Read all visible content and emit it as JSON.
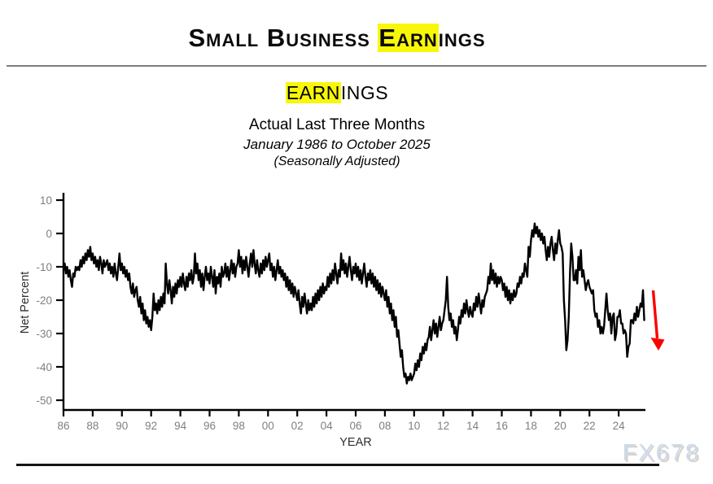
{
  "header": {
    "title_pre": "Small Business ",
    "title_highlight": "Earn",
    "title_post": "ings"
  },
  "watermark": "FX678",
  "chart_data": {
    "type": "line",
    "title_highlight": "EARN",
    "title_rest": "INGS",
    "subtitle": "Actual Last Three Months",
    "date_range": "January 1986 to October 2025",
    "adjustment_note": "(Seasonally Adjusted)",
    "xlabel": "YEAR",
    "ylabel": "Net Percent",
    "ylim": [
      -50,
      10
    ],
    "xlim_years": [
      1986,
      2026
    ],
    "yticks": [
      10,
      0,
      -10,
      -20,
      -30,
      -40,
      -50
    ],
    "xticks": [
      {
        "year": 1986,
        "label": "86"
      },
      {
        "year": 1988,
        "label": "88"
      },
      {
        "year": 1990,
        "label": "90"
      },
      {
        "year": 1992,
        "label": "92"
      },
      {
        "year": 1994,
        "label": "94"
      },
      {
        "year": 1996,
        "label": "96"
      },
      {
        "year": 1998,
        "label": "98"
      },
      {
        "year": 2000,
        "label": "00"
      },
      {
        "year": 2002,
        "label": "02"
      },
      {
        "year": 2004,
        "label": "04"
      },
      {
        "year": 2006,
        "label": "06"
      },
      {
        "year": 2008,
        "label": "08"
      },
      {
        "year": 2010,
        "label": "10"
      },
      {
        "year": 2012,
        "label": "12"
      },
      {
        "year": 2014,
        "label": "14"
      },
      {
        "year": 2016,
        "label": "16"
      },
      {
        "year": 2018,
        "label": "18"
      },
      {
        "year": 2020,
        "label": "20"
      },
      {
        "year": 2022,
        "label": "22"
      },
      {
        "year": 2024,
        "label": "24"
      }
    ],
    "grid": false,
    "legend": "none",
    "line_color": "#000000",
    "frequency": "monthly",
    "start": "1986-01",
    "end": "2025-10",
    "annotation_arrow": {
      "direction": "down",
      "color": "#fb0000",
      "near_year": 2026
    },
    "monthly_net_percent": {
      "1986": [
        -11,
        -9,
        -12,
        -10,
        -13,
        -11,
        -14,
        -16,
        -12,
        -13,
        -10,
        -11
      ],
      "1987": [
        -10,
        -11,
        -8,
        -10,
        -7,
        -9,
        -6,
        -8,
        -5,
        -7,
        -4,
        -8
      ],
      "1988": [
        -6,
        -9,
        -7,
        -10,
        -8,
        -11,
        -7,
        -9,
        -12,
        -8,
        -10,
        -9
      ],
      "1989": [
        -8,
        -11,
        -9,
        -12,
        -10,
        -13,
        -9,
        -12,
        -14,
        -10,
        -6,
        -11
      ],
      "1990": [
        -9,
        -12,
        -10,
        -13,
        -11,
        -14,
        -12,
        -16,
        -18,
        -15,
        -19,
        -17
      ],
      "1991": [
        -16,
        -20,
        -22,
        -19,
        -24,
        -21,
        -26,
        -23,
        -27,
        -25,
        -28,
        -26
      ],
      "1992": [
        -29,
        -25,
        -18,
        -23,
        -21,
        -24,
        -20,
        -23,
        -19,
        -22,
        -18,
        -21
      ],
      "1993": [
        -9,
        -15,
        -18,
        -14,
        -17,
        -21,
        -16,
        -19,
        -15,
        -18,
        -14,
        -16
      ],
      "1994": [
        -13,
        -16,
        -12,
        -15,
        -17,
        -13,
        -16,
        -12,
        -14,
        -11,
        -15,
        -13
      ],
      "1995": [
        -6,
        -12,
        -9,
        -14,
        -11,
        -16,
        -12,
        -17,
        -13,
        -10,
        -14,
        -12
      ],
      "1996": [
        -15,
        -10,
        -13,
        -16,
        -11,
        -18,
        -13,
        -15,
        -12,
        -16,
        -10,
        -13
      ],
      "1997": [
        -12,
        -9,
        -13,
        -10,
        -14,
        -11,
        -8,
        -12,
        -9,
        -13,
        -10,
        -9
      ],
      "1998": [
        -5,
        -10,
        -7,
        -12,
        -8,
        -11,
        -7,
        -10,
        -13,
        -9,
        -6,
        -10
      ],
      "1999": [
        -5,
        -9,
        -12,
        -8,
        -11,
        -13,
        -9,
        -12,
        -8,
        -11,
        -7,
        -10
      ],
      "2000": [
        -8,
        -6,
        -11,
        -9,
        -13,
        -10,
        -14,
        -11,
        -8,
        -12,
        -10,
        -13
      ],
      "2001": [
        -11,
        -14,
        -12,
        -16,
        -13,
        -17,
        -14,
        -18,
        -15,
        -19,
        -16,
        -18
      ],
      "2002": [
        -20,
        -17,
        -21,
        -24,
        -19,
        -22,
        -18,
        -21,
        -24,
        -20,
        -23,
        -21
      ],
      "2003": [
        -23,
        -19,
        -22,
        -18,
        -21,
        -17,
        -20,
        -16,
        -19,
        -15,
        -18,
        -16
      ],
      "2004": [
        -17,
        -13,
        -16,
        -12,
        -15,
        -11,
        -14,
        -9,
        -12,
        -15,
        -11,
        -13
      ],
      "2005": [
        -6,
        -11,
        -8,
        -12,
        -9,
        -13,
        -10,
        -7,
        -11,
        -14,
        -10,
        -12
      ],
      "2006": [
        -9,
        -13,
        -10,
        -14,
        -11,
        -15,
        -12,
        -9,
        -13,
        -16,
        -12,
        -14
      ],
      "2007": [
        -11,
        -15,
        -12,
        -16,
        -13,
        -17,
        -14,
        -18,
        -15,
        -19,
        -16,
        -18
      ],
      "2008": [
        -20,
        -17,
        -22,
        -19,
        -24,
        -21,
        -26,
        -23,
        -28,
        -25,
        -31,
        -29
      ],
      "2009": [
        -33,
        -37,
        -35,
        -40,
        -43,
        -42,
        -45,
        -43,
        -44,
        -42,
        -44,
        -43
      ],
      "2010": [
        -42,
        -39,
        -41,
        -38,
        -40,
        -36,
        -38,
        -34,
        -36,
        -33,
        -35,
        -32
      ],
      "2011": [
        -31,
        -28,
        -32,
        -29,
        -26,
        -30,
        -27,
        -31,
        -28,
        -25,
        -29,
        -27
      ],
      "2012": [
        -26,
        -23,
        -20,
        -13,
        -22,
        -26,
        -24,
        -28,
        -26,
        -30,
        -28,
        -32
      ],
      "2013": [
        -29,
        -25,
        -27,
        -23,
        -25,
        -21,
        -24,
        -20,
        -23,
        -25,
        -22,
        -24
      ],
      "2014": [
        -25,
        -21,
        -23,
        -19,
        -22,
        -18,
        -21,
        -24,
        -20,
        -22,
        -19,
        -18
      ],
      "2015": [
        -17,
        -13,
        -15,
        -9,
        -14,
        -11,
        -15,
        -12,
        -16,
        -13,
        -15,
        -13
      ],
      "2016": [
        -14,
        -17,
        -15,
        -19,
        -16,
        -20,
        -17,
        -21,
        -18,
        -20,
        -17,
        -19
      ],
      "2017": [
        -18,
        -15,
        -16,
        -13,
        -15,
        -12,
        -13,
        -9,
        -11,
        -13,
        -4,
        -7
      ],
      "2018": [
        -2,
        1,
        -1,
        3,
        0,
        2,
        -1,
        1,
        -2,
        0,
        -3,
        -1
      ],
      "2019": [
        -5,
        -8,
        -4,
        -7,
        -3,
        -1,
        -5,
        -8,
        -3,
        -6,
        -2,
        1
      ],
      "2020": [
        -3,
        -4,
        -6,
        -20,
        -26,
        -35,
        -32,
        -25,
        -12,
        -3,
        -7,
        -14
      ],
      "2021": [
        -14,
        -11,
        -15,
        -7,
        -11,
        -5,
        -13,
        -11,
        -14,
        -17,
        -15,
        -14
      ],
      "2022": [
        -16,
        -17,
        -18,
        -17,
        -23,
        -25,
        -24,
        -28,
        -26,
        -30,
        -28,
        -30
      ],
      "2023": [
        -28,
        -23,
        -18,
        -23,
        -26,
        -24,
        -30,
        -25,
        -24,
        -32,
        -30,
        -25
      ],
      "2024": [
        -25,
        -23,
        -27,
        -27,
        -30,
        -29,
        -30,
        -37,
        -34,
        -33,
        -26,
        -26
      ],
      "2025": [
        -27,
        -24,
        -26,
        -22,
        -25,
        -23,
        -21,
        -22,
        -17,
        -26
      ]
    }
  }
}
